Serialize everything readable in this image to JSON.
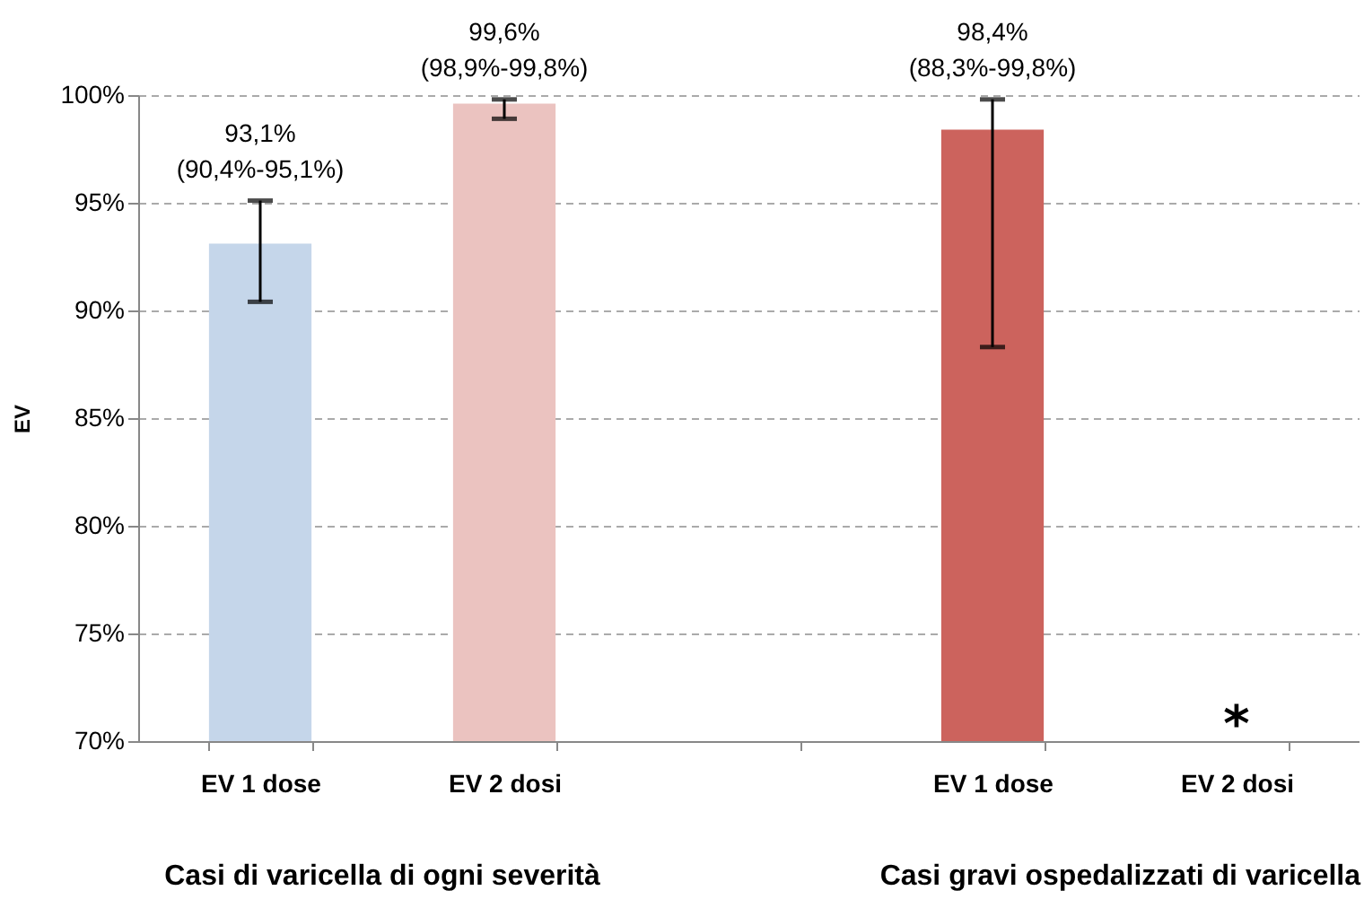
{
  "chart_data": {
    "type": "bar",
    "categories": [
      "EV 1 dose",
      "EV 2 dosi",
      null,
      "EV 1 dose",
      "EV 2 dosi"
    ],
    "values": [
      93.1,
      99.6,
      null,
      98.4,
      null
    ],
    "colors": [
      "#c5d6ea",
      "#ebc3c0",
      null,
      "#cc635d",
      null
    ],
    "errors": [
      [
        90.4,
        95.1
      ],
      [
        98.9,
        99.8
      ],
      null,
      [
        88.3,
        99.8
      ],
      null
    ],
    "value_labels": [
      "93,1%\n(90,4%-95,1%)",
      "99,6%\n(98,9%-99,8%)",
      null,
      "98,4%\n(88,3%-99,8%)",
      "*"
    ],
    "ylabel": "EV",
    "ylim": [
      70,
      100
    ],
    "yticks": [
      {
        "value": 70,
        "label": "70%"
      },
      {
        "value": 75,
        "label": "75%"
      },
      {
        "value": 80,
        "label": "80%"
      },
      {
        "value": 85,
        "label": "85%"
      },
      {
        "value": 90,
        "label": "90%"
      },
      {
        "value": 95,
        "label": "95%"
      },
      {
        "value": 100,
        "label": "100%"
      }
    ],
    "grid": "y",
    "annotations": [
      "Casi di varicella di ogni severità",
      "Casi gravi ospedalizzati di varicella"
    ]
  }
}
